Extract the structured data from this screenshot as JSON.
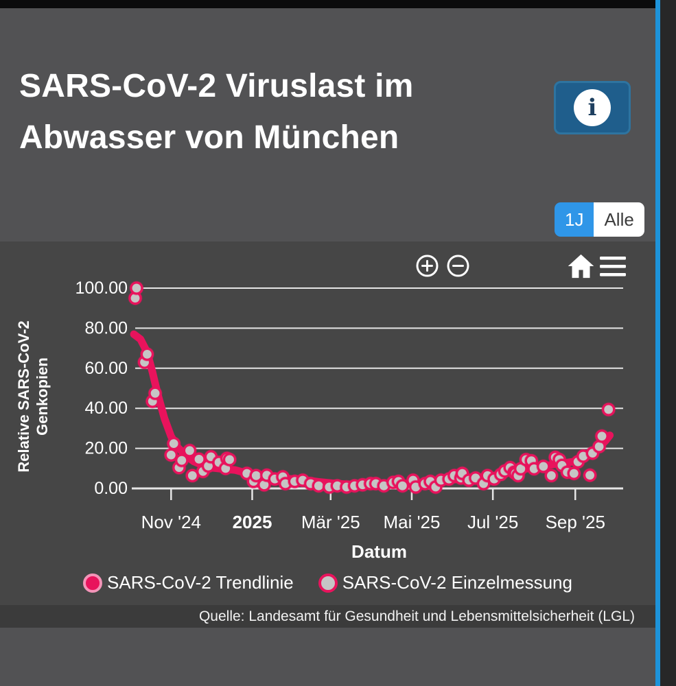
{
  "header": {
    "title": "SARS-CoV-2 Viruslast im Abwasser von München",
    "info_glyph": "i"
  },
  "range_selector": {
    "options": [
      {
        "label": "1J",
        "active": true
      },
      {
        "label": "Alle",
        "active": false
      }
    ]
  },
  "toolbar": {
    "zoom_in_icon": "plus-circle",
    "zoom_out_icon": "minus-circle",
    "reset_icon": "home",
    "menu_icon": "hamburger"
  },
  "colors": {
    "trendline": "#e8135c",
    "scatter_fill": "#c6c5c5",
    "scatter_border": "#e8135c",
    "active_range_button": "#2f96e8",
    "info_button": "#1f5e8c",
    "side_stripe": "#1d93da",
    "gridline": "#e6e6e6"
  },
  "legend": {
    "items": [
      {
        "label": "SARS-CoV-2 Trendlinie"
      },
      {
        "label": "SARS-CoV-2 Einzelmessung"
      }
    ]
  },
  "source": "Quelle: Landesamt für Gesundheit und Lebensmittelsicherheit (LGL)",
  "chart_data": {
    "type": "scatter",
    "title": "SARS-CoV-2 Viruslast im Abwasser von München",
    "xlabel": "Datum",
    "ylabel": "Relative SARS-CoV-2 Genkopien",
    "grid": true,
    "legend_position": "bottom",
    "x_axis": {
      "unit": "days since 2024-10-01",
      "range": [
        4,
        371
      ],
      "ticks": [
        {
          "day": 31,
          "label": "Nov '24",
          "bold": false
        },
        {
          "day": 92,
          "label": "2025",
          "bold": true
        },
        {
          "day": 151,
          "label": "Mär '25",
          "bold": false
        },
        {
          "day": 212,
          "label": "Mai '25",
          "bold": false
        },
        {
          "day": 273,
          "label": "Jul '25",
          "bold": false
        },
        {
          "day": 335,
          "label": "Sep '25",
          "bold": false
        }
      ],
      "title": "Datum"
    },
    "y_axis": {
      "range": [
        0,
        100
      ],
      "ticks": [
        {
          "value": 0,
          "label": "0.00"
        },
        {
          "value": 20,
          "label": "20.00"
        },
        {
          "value": 40,
          "label": "40.00"
        },
        {
          "value": 60,
          "label": "60.00"
        },
        {
          "value": 80,
          "label": "80.00"
        },
        {
          "value": 100,
          "label": "100.00"
        }
      ],
      "title_lines": [
        "Relative SARS-CoV-2",
        "Genkopien"
      ]
    },
    "series": [
      {
        "name": "SARS-CoV-2 Trendlinie",
        "type": "line",
        "color": "#e8135c",
        "points": [
          [
            3,
            77
          ],
          [
            8,
            74.5
          ],
          [
            13,
            68
          ],
          [
            17,
            58
          ],
          [
            21,
            47
          ],
          [
            26,
            35
          ],
          [
            31,
            26
          ],
          [
            36,
            20.5
          ],
          [
            42,
            16.5
          ],
          [
            48,
            13.5
          ],
          [
            55,
            11.5
          ],
          [
            62,
            10.3
          ],
          [
            70,
            9.7
          ],
          [
            79,
            9.2
          ],
          [
            88,
            7.6
          ],
          [
            95,
            6.6
          ],
          [
            103,
            6.2
          ],
          [
            112,
            5.4
          ],
          [
            122,
            4.7
          ],
          [
            132,
            4.1
          ],
          [
            142,
            3.3
          ],
          [
            152,
            2.6
          ],
          [
            162,
            2.1
          ],
          [
            172,
            1.9
          ],
          [
            182,
            2
          ],
          [
            192,
            2.1
          ],
          [
            202,
            2.3
          ],
          [
            212,
            2.6
          ],
          [
            222,
            3
          ],
          [
            232,
            3.6
          ],
          [
            242,
            4.3
          ],
          [
            252,
            4.9
          ],
          [
            262,
            5.4
          ],
          [
            272,
            6.2
          ],
          [
            280,
            7.2
          ],
          [
            288,
            8.4
          ],
          [
            296,
            9.6
          ],
          [
            304,
            10.4
          ],
          [
            312,
            11.2
          ],
          [
            320,
            12.2
          ],
          [
            328,
            12.8
          ],
          [
            336,
            13.6
          ],
          [
            342,
            15.2
          ],
          [
            348,
            17.6
          ],
          [
            353,
            20.5
          ],
          [
            358,
            24
          ],
          [
            361,
            26.5
          ]
        ]
      },
      {
        "name": "SARS-CoV-2 Einzelmessung",
        "type": "scatter",
        "color": "#c6c5c5",
        "border_color": "#e8135c",
        "points": [
          [
            4,
            95
          ],
          [
            5,
            100
          ],
          [
            11,
            63
          ],
          [
            13,
            67
          ],
          [
            17,
            43.5
          ],
          [
            19,
            47.5
          ],
          [
            31,
            16.7
          ],
          [
            33,
            22.4
          ],
          [
            37,
            10.4
          ],
          [
            39,
            14
          ],
          [
            45,
            18.9
          ],
          [
            47,
            6.4
          ],
          [
            52,
            14.6
          ],
          [
            55,
            8.5
          ],
          [
            59,
            11.2
          ],
          [
            61,
            15.8
          ],
          [
            67,
            13
          ],
          [
            72,
            10
          ],
          [
            73,
            15
          ],
          [
            75,
            14.4
          ],
          [
            88,
            7.5
          ],
          [
            93,
            3.5
          ],
          [
            95,
            6.4
          ],
          [
            101,
            1.8
          ],
          [
            103,
            6.6
          ],
          [
            109,
            4.7
          ],
          [
            115,
            5.8
          ],
          [
            117,
            2.4
          ],
          [
            124,
            3.5
          ],
          [
            130,
            4.1
          ],
          [
            136,
            2.4
          ],
          [
            142,
            1.3
          ],
          [
            150,
            0.7
          ],
          [
            156,
            1.3
          ],
          [
            163,
            0.7
          ],
          [
            169,
            1.3
          ],
          [
            175,
            1.8
          ],
          [
            181,
            2.4
          ],
          [
            185,
            2.4
          ],
          [
            191,
            1.3
          ],
          [
            198,
            3
          ],
          [
            202,
            3.5
          ],
          [
            205,
            1.3
          ],
          [
            213,
            4.1
          ],
          [
            215,
            0.7
          ],
          [
            222,
            2.4
          ],
          [
            226,
            3.5
          ],
          [
            230,
            0.7
          ],
          [
            234,
            4.1
          ],
          [
            240,
            4.7
          ],
          [
            244,
            6.4
          ],
          [
            249,
            5.2
          ],
          [
            250,
            7.5
          ],
          [
            255,
            4.1
          ],
          [
            260,
            5.2
          ],
          [
            266,
            2.4
          ],
          [
            269,
            6.4
          ],
          [
            274,
            4.7
          ],
          [
            279,
            7
          ],
          [
            282,
            8.7
          ],
          [
            286,
            10.4
          ],
          [
            289,
            8.1
          ],
          [
            290,
            7.5
          ],
          [
            292,
            6.4
          ],
          [
            294,
            9.8
          ],
          [
            298,
            14.4
          ],
          [
            302,
            13.8
          ],
          [
            304,
            9.8
          ],
          [
            311,
            11
          ],
          [
            317,
            6.4
          ],
          [
            320,
            15.5
          ],
          [
            323,
            14.4
          ],
          [
            325,
            11.5
          ],
          [
            329,
            8.1
          ],
          [
            334,
            7.5
          ],
          [
            337,
            13.3
          ],
          [
            341,
            16.1
          ],
          [
            346,
            6.6
          ],
          [
            348,
            17.6
          ],
          [
            353,
            20.9
          ],
          [
            355,
            26.1
          ],
          [
            360,
            39.4
          ]
        ]
      }
    ]
  }
}
